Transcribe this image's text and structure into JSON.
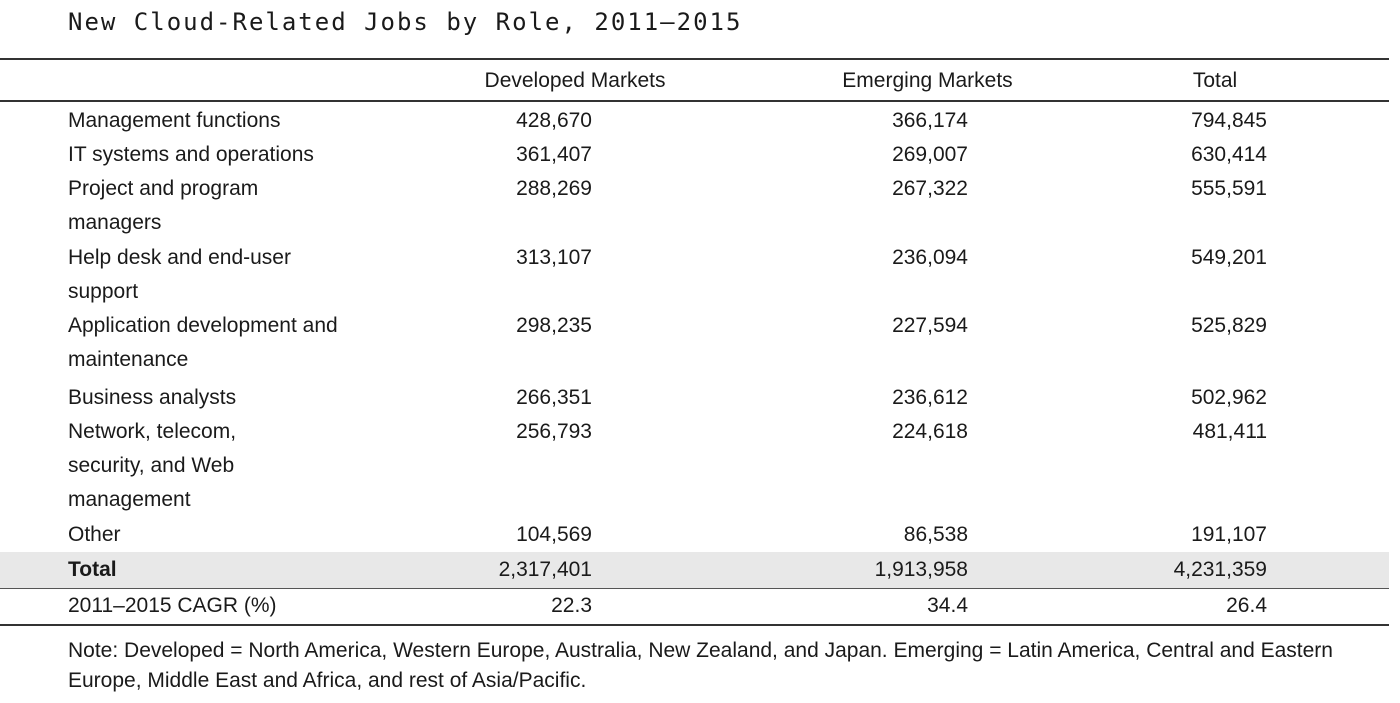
{
  "title": "New Cloud-Related Jobs by Role, 2011–2015",
  "columns": [
    "Developed Markets",
    "Emerging Markets",
    "Total"
  ],
  "rows": [
    {
      "label": "Management functions",
      "developed": "428,670",
      "emerging": "366,174",
      "total": "794,845"
    },
    {
      "label": "IT systems and operations",
      "developed": "361,407",
      "emerging": "269,007",
      "total": "630,414"
    },
    {
      "label": "Project and program managers",
      "developed": "288,269",
      "emerging": "267,322",
      "total": "555,591"
    },
    {
      "label": "Help desk and end-user support",
      "developed": "313,107",
      "emerging": "236,094",
      "total": "549,201"
    },
    {
      "label": "Application development and maintenance",
      "developed": "298,235",
      "emerging": "227,594",
      "total": "525,829"
    },
    {
      "label": "Business analysts",
      "developed": "266,351",
      "emerging": "236,612",
      "total": "502,962"
    },
    {
      "label": "Network, telecom, security, and Web management",
      "developed": "256,793",
      "emerging": "224,618",
      "total": "481,411"
    },
    {
      "label": "Other",
      "developed": "104,569",
      "emerging": "86,538",
      "total": "191,107"
    }
  ],
  "total_row": {
    "label": "Total",
    "developed": "2,317,401",
    "emerging": "1,913,958",
    "total": "4,231,359"
  },
  "cagr_row": {
    "label": "2011–2015 CAGR (%)",
    "developed": "22.3",
    "emerging": "34.4",
    "total": "26.4"
  },
  "note": "Note: Developed = North America, Western Europe, Australia, New Zealand, and Japan. Emerging = Latin America, Central and Eastern Europe, Middle East and Africa, and rest of Asia/Pacific."
}
